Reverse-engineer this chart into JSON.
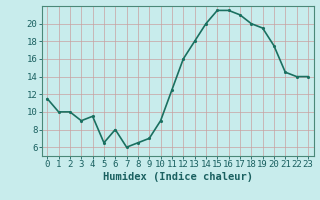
{
  "x": [
    0,
    1,
    2,
    3,
    4,
    5,
    6,
    7,
    8,
    9,
    10,
    11,
    12,
    13,
    14,
    15,
    16,
    17,
    18,
    19,
    20,
    21,
    22,
    23
  ],
  "y": [
    11.5,
    10.0,
    10.0,
    9.0,
    9.5,
    6.5,
    8.0,
    6.0,
    6.5,
    7.0,
    9.0,
    12.5,
    16.0,
    18.0,
    20.0,
    21.5,
    21.5,
    21.0,
    20.0,
    19.5,
    17.5,
    14.5,
    14.0,
    14.0
  ],
  "xlabel": "Humidex (Indice chaleur)",
  "line_color": "#1a7060",
  "marker_color": "#1a7060",
  "bg_color": "#c8ecec",
  "grid_color": "#c8a0a0",
  "axis_color": "#4a8878",
  "tick_color": "#1a6060",
  "xlim": [
    -0.5,
    23.5
  ],
  "ylim": [
    5,
    22
  ],
  "yticks": [
    6,
    8,
    10,
    12,
    14,
    16,
    18,
    20
  ],
  "xticks": [
    0,
    1,
    2,
    3,
    4,
    5,
    6,
    7,
    8,
    9,
    10,
    11,
    12,
    13,
    14,
    15,
    16,
    17,
    18,
    19,
    20,
    21,
    22,
    23
  ],
  "xtick_labels": [
    "0",
    "1",
    "2",
    "3",
    "4",
    "5",
    "6",
    "7",
    "8",
    "9",
    "10",
    "11",
    "12",
    "13",
    "14",
    "15",
    "16",
    "17",
    "18",
    "19",
    "20",
    "21",
    "22",
    "23"
  ],
  "fontsize_ticks": 6.5,
  "fontsize_label": 7.5,
  "linewidth": 1.2,
  "markersize": 2.5
}
